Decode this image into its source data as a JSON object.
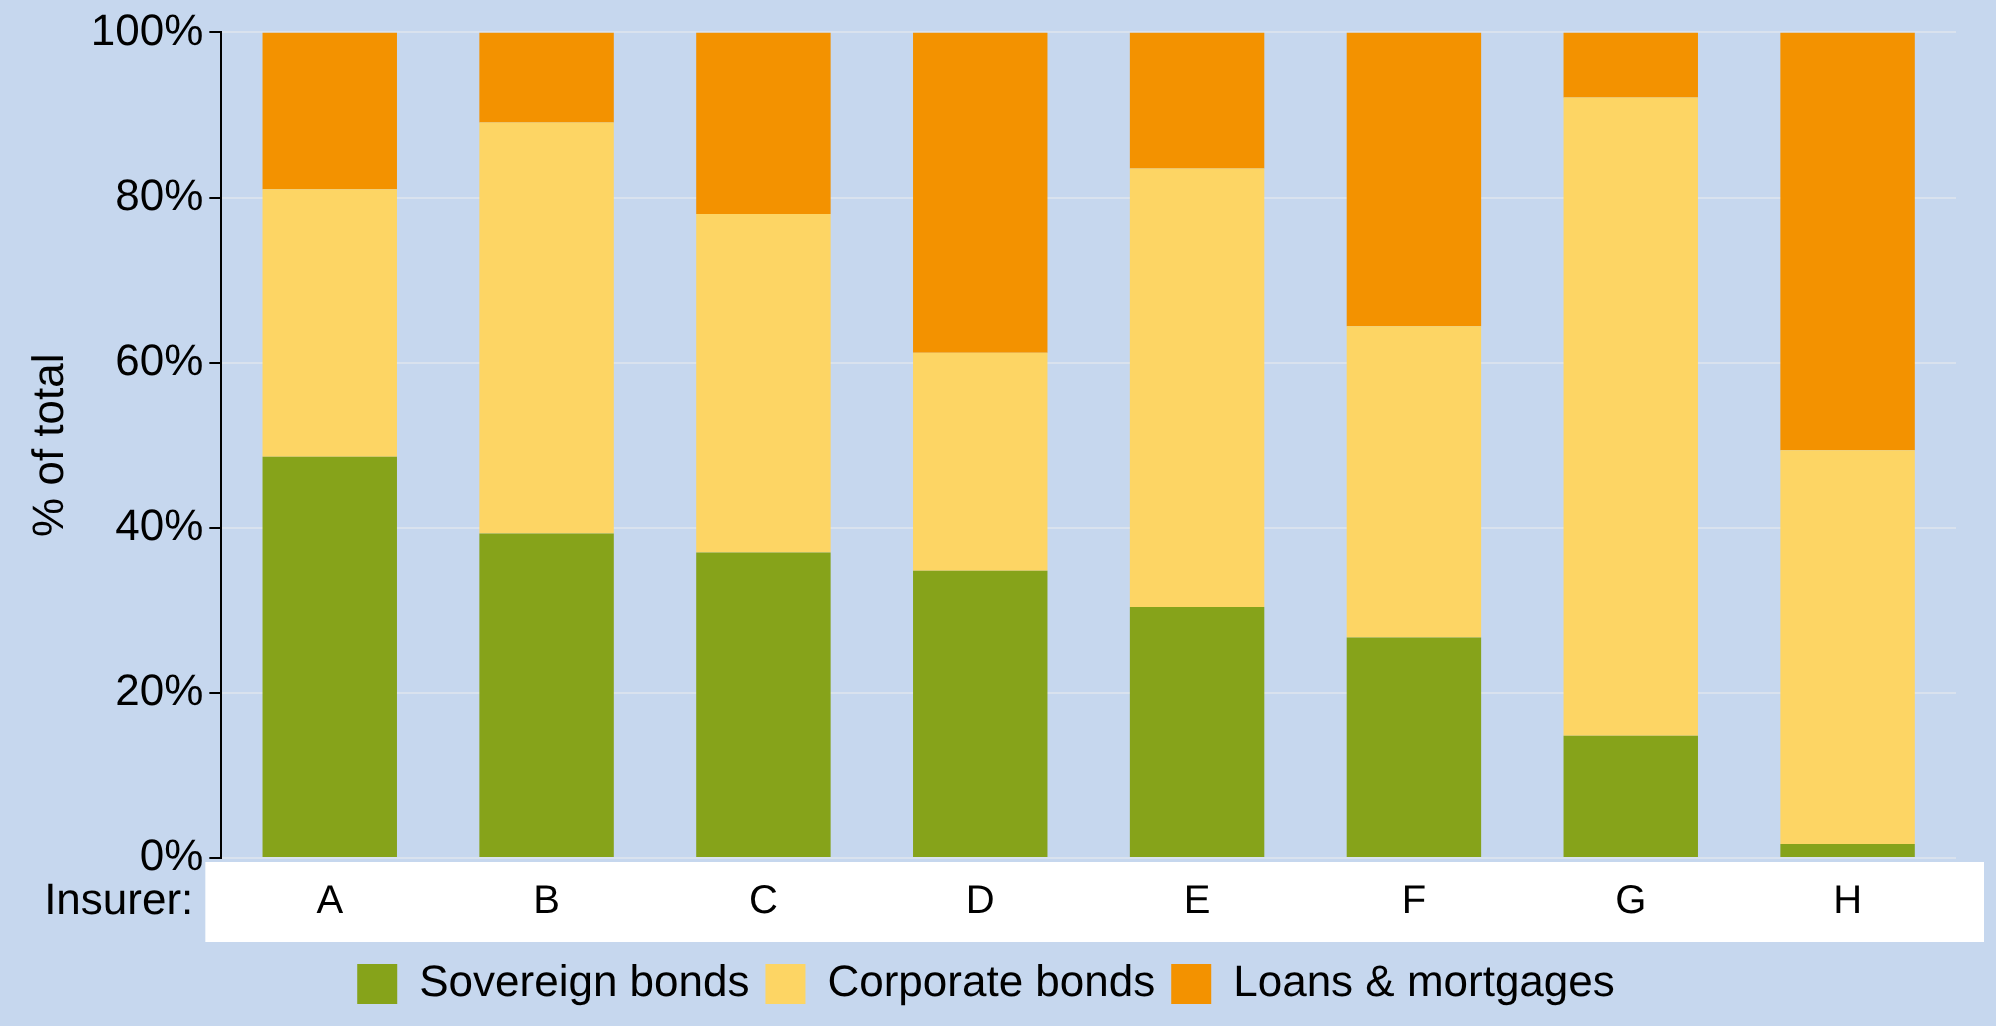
{
  "chart_data": {
    "type": "bar",
    "stacked": true,
    "xlabel": "Insurer:",
    "ylabel": "% of total",
    "categories": [
      "A",
      "B",
      "C",
      "D",
      "E",
      "F",
      "G",
      "H"
    ],
    "series": [
      {
        "name": "Sovereign bonds",
        "color": "#86a31a",
        "values": [
          48.6,
          39.3,
          37.0,
          34.8,
          30.4,
          26.7,
          14.8,
          1.7
        ]
      },
      {
        "name": "Corporate bonds",
        "color": "#fdd564",
        "values": [
          32.4,
          49.8,
          41.0,
          26.4,
          53.1,
          37.7,
          77.3,
          47.7
        ]
      },
      {
        "name": "Loans & mortgages",
        "color": "#f39200",
        "values": [
          19.0,
          10.9,
          22.0,
          38.8,
          16.5,
          35.6,
          7.9,
          50.6
        ]
      }
    ],
    "ylim": [
      0,
      100
    ],
    "yticks": [
      {
        "value": 0,
        "label": "0%"
      },
      {
        "value": 20,
        "label": "20%"
      },
      {
        "value": 40,
        "label": "40%"
      },
      {
        "value": 60,
        "label": "60%"
      },
      {
        "value": 80,
        "label": "80%"
      },
      {
        "value": 100,
        "label": "100%"
      }
    ],
    "grid": "y",
    "legend": "bottom"
  }
}
